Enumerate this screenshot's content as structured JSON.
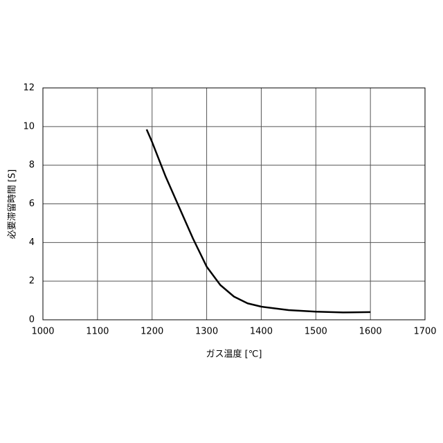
{
  "chart_data": {
    "type": "line",
    "x_label": "ガス温度 [℃]",
    "y_label": "必要滞留時間 [S]",
    "x": [
      1190,
      1200,
      1225,
      1250,
      1275,
      1300,
      1325,
      1350,
      1375,
      1400,
      1450,
      1500,
      1550,
      1600
    ],
    "series": [
      {
        "name": "必要滞留時間",
        "color": "#000000",
        "values": [
          9.85,
          9.2,
          7.4,
          5.8,
          4.2,
          2.75,
          1.8,
          1.2,
          0.85,
          0.68,
          0.5,
          0.42,
          0.38,
          0.4
        ]
      }
    ],
    "xlim": [
      1000,
      1700
    ],
    "xticks": [
      1000,
      1100,
      1200,
      1300,
      1400,
      1500,
      1600,
      1700
    ],
    "ylim": [
      0,
      12
    ],
    "yticks": [
      0,
      2,
      4,
      6,
      8,
      10,
      12
    ],
    "grid": true
  }
}
